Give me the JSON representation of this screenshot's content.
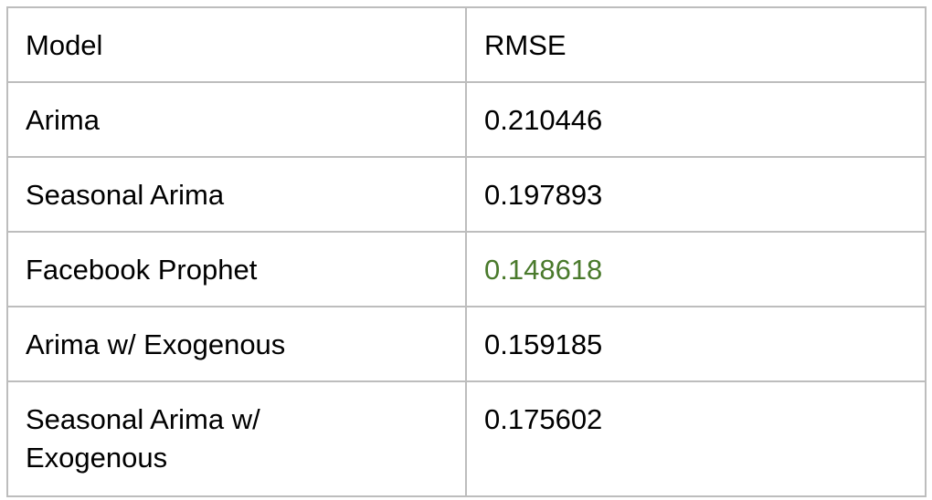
{
  "table": {
    "headers": [
      "Model",
      "RMSE"
    ],
    "rows": [
      {
        "model": "Arima",
        "rmse": "0.210446"
      },
      {
        "model": "Seasonal Arima",
        "rmse": "0.197893"
      },
      {
        "model": "Facebook Prophet",
        "rmse": "0.148618",
        "highlight": true
      },
      {
        "model": "Arima w/ Exogenous",
        "rmse": "0.159185"
      },
      {
        "model_line1": "Seasonal Arima w/",
        "model_line2": "Exogenous",
        "rmse": "0.175602"
      }
    ]
  },
  "colors": {
    "border": "#bdbdbd",
    "text": "#000000",
    "highlight": "#4a7a2c"
  }
}
